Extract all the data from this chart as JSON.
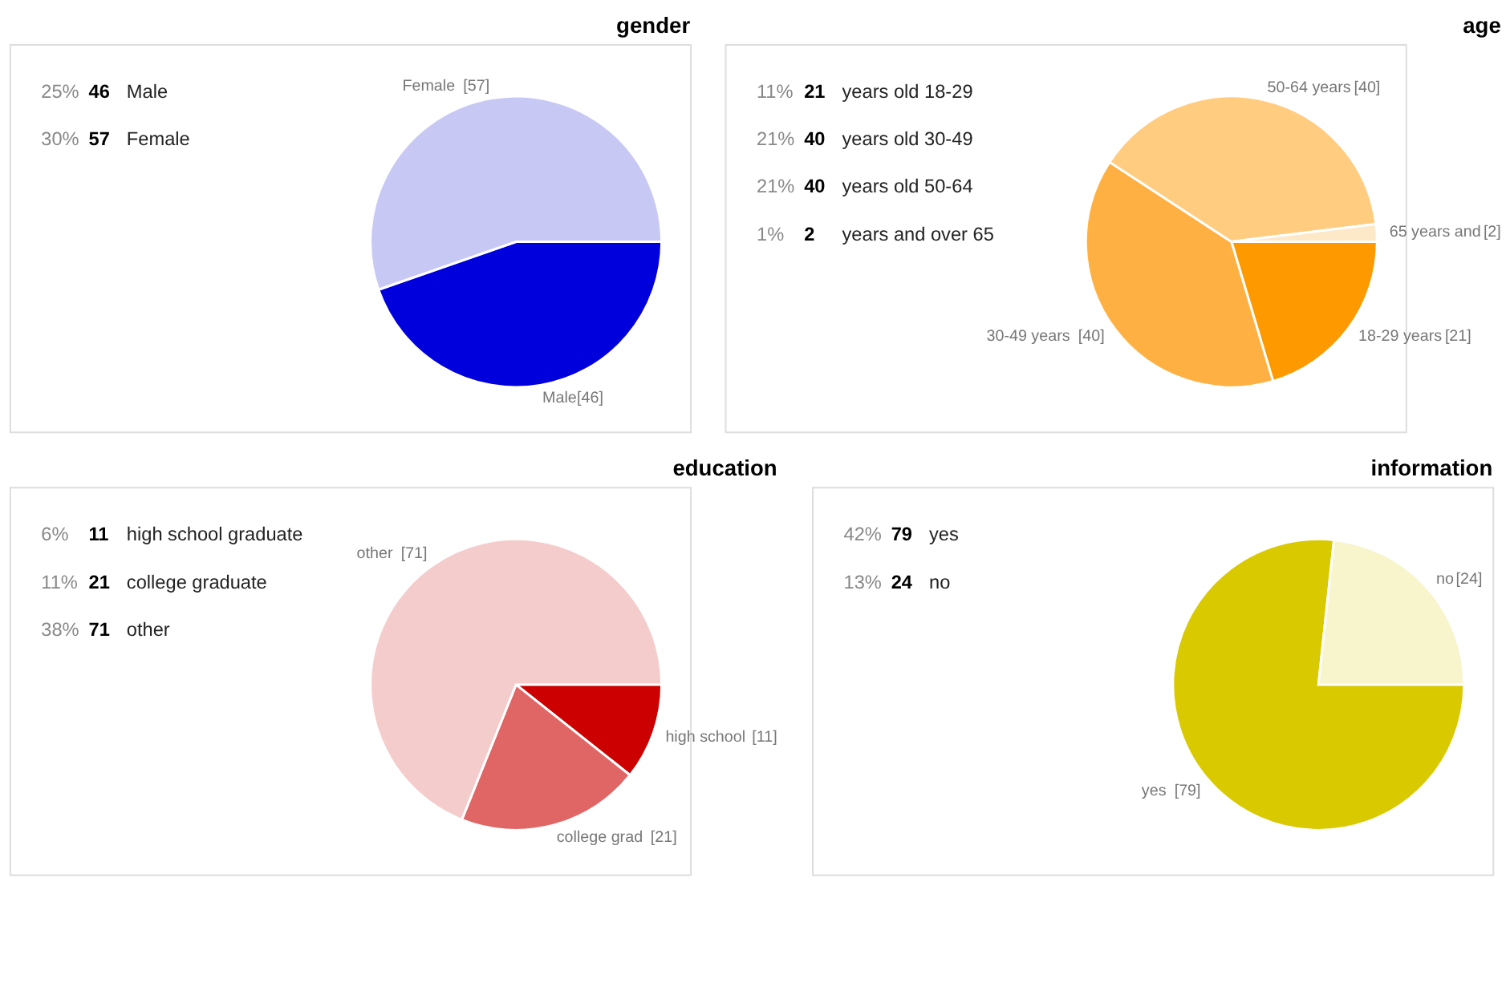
{
  "chart_data": [
    {
      "type": "pie",
      "title": "gender",
      "categories": [
        "Male",
        "Female"
      ],
      "values": [
        46,
        57
      ],
      "colors": [
        "#0000dd",
        "#c8c8f4"
      ],
      "value_labels": [
        "[46]",
        "[57]"
      ],
      "annotations": [
        "25%",
        "46",
        "Male",
        "30%",
        "57",
        "Female"
      ]
    },
    {
      "type": "pie",
      "title": "age",
      "categories": [
        "18-29 years",
        "30-49 years",
        "50-64 years",
        "65 years and"
      ],
      "values": [
        21,
        40,
        40,
        2
      ],
      "colors": [
        "#ff9900",
        "#ffb042",
        "#ffcc80",
        "#fde8c8"
      ],
      "value_labels": [
        "[21]",
        "[40]",
        "[40]",
        "[2]"
      ],
      "annotations": [
        "11%",
        "21",
        "years old 18-29",
        "21%",
        "40",
        "years old 30-49",
        "21%",
        "40",
        "years old 50-64",
        "1%",
        "2",
        "years and over 65"
      ]
    },
    {
      "type": "pie",
      "title": "education",
      "categories": [
        "high school",
        "college grad",
        "other"
      ],
      "values": [
        11,
        21,
        71
      ],
      "colors": [
        "#cc0000",
        "#e06666",
        "#f4cccc"
      ],
      "value_labels": [
        "[11]",
        "[21]",
        "[71]"
      ],
      "annotations": [
        "6%",
        "11",
        "high school graduate",
        "11%",
        "21",
        "college graduate",
        "38%",
        "71",
        "other"
      ]
    },
    {
      "type": "pie",
      "title": "information",
      "categories": [
        "yes",
        "no"
      ],
      "values": [
        79,
        24
      ],
      "colors": [
        "#d9c900",
        "#f8f4cc"
      ],
      "value_labels": [
        "[79]",
        "[24]"
      ],
      "annotations": [
        "42%",
        "79",
        "yes",
        "13%",
        "24",
        "no"
      ]
    }
  ]
}
